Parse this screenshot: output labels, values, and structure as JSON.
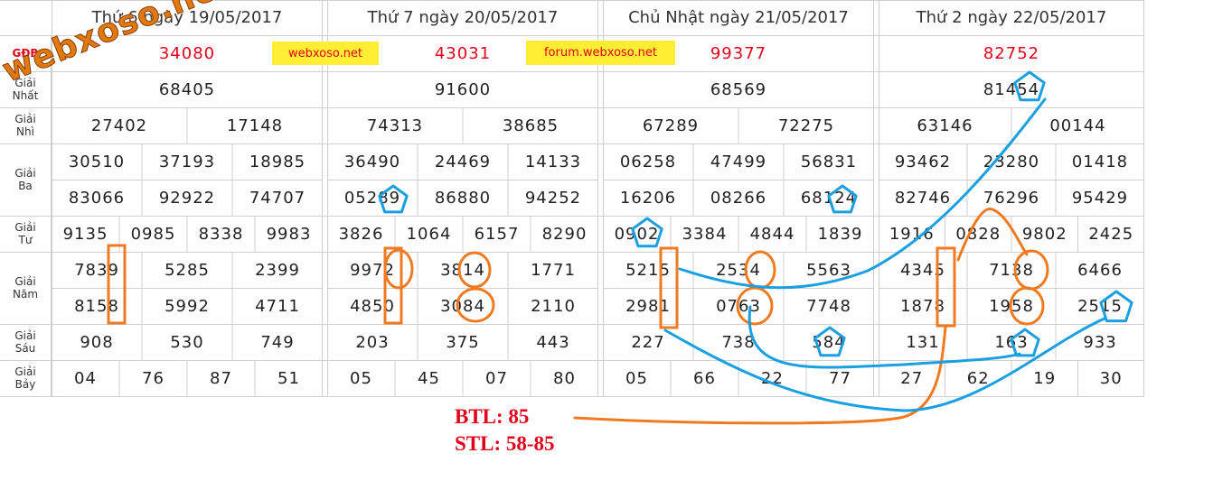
{
  "labels": {
    "db": "GĐB",
    "nhat": [
      "Giải",
      "Nhất"
    ],
    "nhi": [
      "Giải",
      "Nhì"
    ],
    "ba": [
      "Giải",
      "Ba"
    ],
    "tu": [
      "Giải",
      "Tư"
    ],
    "nam": [
      "Giải",
      "Năm"
    ],
    "sau": [
      "Giải",
      "Sáu"
    ],
    "bay": [
      "Giải",
      "Bảy"
    ]
  },
  "days": [
    {
      "title": "Thứ 6 ngày 19/05/2017",
      "db": "34080",
      "nhat": "68405",
      "nhi": [
        "27402",
        "17148"
      ],
      "ba": [
        "30510",
        "37193",
        "18985",
        "83066",
        "92922",
        "74707"
      ],
      "tu": [
        "9135",
        "0985",
        "8338",
        "9983"
      ],
      "nam": [
        "7839",
        "5285",
        "2399",
        "8158",
        "5992",
        "4711"
      ],
      "sau": [
        "908",
        "530",
        "749"
      ],
      "bay": [
        "04",
        "76",
        "87",
        "51"
      ]
    },
    {
      "title": "Thứ 7 ngày 20/05/2017",
      "db": "43031",
      "nhat": "91600",
      "nhi": [
        "74313",
        "38685"
      ],
      "ba": [
        "36490",
        "24469",
        "14133",
        "05289",
        "86880",
        "94252"
      ],
      "tu": [
        "3826",
        "1064",
        "6157",
        "8290"
      ],
      "nam": [
        "9972",
        "3814",
        "1771",
        "4850",
        "3084",
        "2110"
      ],
      "sau": [
        "203",
        "375",
        "443"
      ],
      "bay": [
        "05",
        "45",
        "07",
        "80"
      ]
    },
    {
      "title": "Chủ Nhật ngày 21/05/2017",
      "db": "99377",
      "nhat": "68569",
      "nhi": [
        "67289",
        "72275"
      ],
      "ba": [
        "06258",
        "47499",
        "56831",
        "16206",
        "08266",
        "68124"
      ],
      "tu": [
        "0902",
        "3384",
        "4844",
        "1839"
      ],
      "nam": [
        "5215",
        "2534",
        "5563",
        "2981",
        "0763",
        "7748"
      ],
      "sau": [
        "227",
        "738",
        "584"
      ],
      "bay": [
        "05",
        "66",
        "22",
        "77"
      ]
    },
    {
      "title": "Thứ 2 ngày 22/05/2017",
      "db": "82752",
      "nhat": "81454",
      "nhi": [
        "63146",
        "00144"
      ],
      "ba": [
        "93462",
        "23280",
        "01418",
        "82746",
        "76296",
        "95429"
      ],
      "tu": [
        "1916",
        "0828",
        "9802",
        "2425"
      ],
      "nam": [
        "4345",
        "7138",
        "6466",
        "1878",
        "1958",
        "2515"
      ],
      "sau": [
        "131",
        "163",
        "933"
      ],
      "bay": [
        "27",
        "62",
        "19",
        "30"
      ]
    }
  ],
  "banners": [
    "webxoso.net",
    "forum.webxoso.net"
  ],
  "watermark": "webxoso.net",
  "result": {
    "btl": "BTL: 85",
    "stl": "STL: 58-85"
  },
  "colors": {
    "red": "#e3001b",
    "orange": "#f07a20",
    "blue": "#1a9fe0",
    "yellow": "#ffee33",
    "grid": "#cfcfcf"
  }
}
